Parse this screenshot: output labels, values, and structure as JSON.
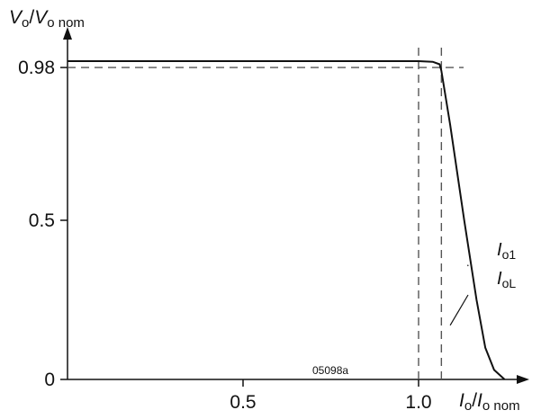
{
  "chart_data": {
    "type": "line",
    "figure_id": "05098a",
    "y_axis": {
      "label": {
        "main": "V",
        "main_sub": "o",
        "sep": "/",
        "ref": "V",
        "ref_sub": "o nom"
      },
      "range": [
        0,
        1.0
      ],
      "ticks": [
        {
          "value": 0,
          "label": "0"
        },
        {
          "value": 0.5,
          "label": "0.5"
        },
        {
          "value": 0.98,
          "label": "0.98"
        }
      ]
    },
    "x_axis": {
      "label": {
        "main": "I",
        "main_sub": "o",
        "sep": "/",
        "ref": "I",
        "ref_sub": "o nom"
      },
      "range": [
        0,
        1.45
      ],
      "ticks": [
        {
          "value": 0.5,
          "label": "0.5"
        },
        {
          "value": 1.0,
          "label": "1.0"
        }
      ]
    },
    "series": [
      {
        "points": [
          [
            0,
            1.0
          ],
          [
            1.0,
            1.0
          ],
          [
            1.04,
            0.998
          ],
          [
            1.06,
            0.99
          ],
          [
            1.065,
            0.97
          ],
          [
            1.09,
            0.8
          ],
          [
            1.13,
            0.5
          ],
          [
            1.165,
            0.25
          ],
          [
            1.19,
            0.1
          ],
          [
            1.215,
            0.03
          ],
          [
            1.245,
            0
          ]
        ]
      }
    ],
    "reference_lines": [
      {
        "axis": "y",
        "value": 0.98,
        "style": "dashed"
      },
      {
        "axis": "x",
        "value": 1.0,
        "style": "dashed"
      },
      {
        "axis": "x",
        "value": 1.065,
        "style": "dashed"
      }
    ],
    "annotations": [
      {
        "main": "I",
        "sub": "o1",
        "target": [
          1.14,
          0.36
        ]
      },
      {
        "main": "I",
        "sub": "oL",
        "target": [
          1.09,
          0.17
        ]
      }
    ]
  }
}
